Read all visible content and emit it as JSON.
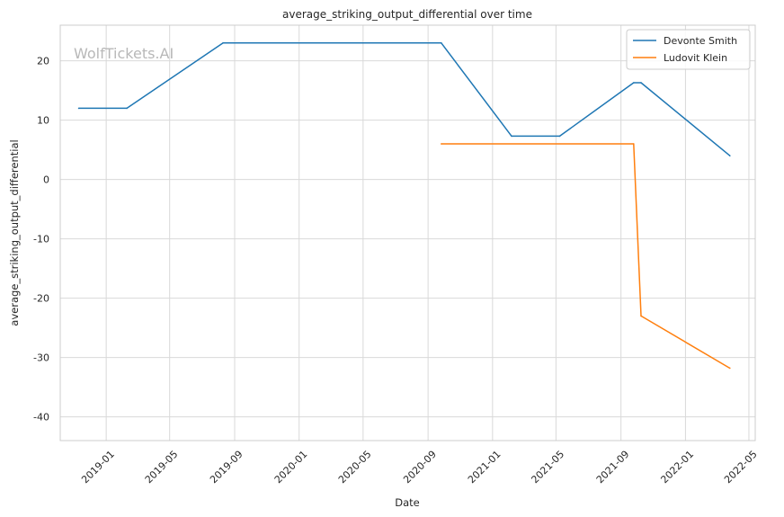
{
  "chart_data": {
    "type": "line",
    "title": "average_striking_output_differential over time",
    "xlabel": "Date",
    "ylabel": "average_striking_output_differential",
    "watermark": "WolfTickets.AI",
    "x_ticks": [
      "2019-01",
      "2019-05",
      "2019-09",
      "2020-01",
      "2020-05",
      "2020-09",
      "2021-01",
      "2021-05",
      "2021-09",
      "2022-01",
      "2022-05"
    ],
    "y_ticks": [
      -40,
      -30,
      -20,
      -10,
      0,
      10,
      20
    ],
    "xlim": [
      "2018-10-06",
      "2022-05-13"
    ],
    "ylim": [
      -44,
      26
    ],
    "grid": true,
    "legend_position": "top-right",
    "series": [
      {
        "name": "Devonte Smith",
        "color": "#1f77b4",
        "points": [
          [
            "2018-11-10",
            12.0
          ],
          [
            "2019-02-09",
            12.0
          ],
          [
            "2019-08-10",
            23.0
          ],
          [
            "2020-09-26",
            23.0
          ],
          [
            "2021-02-06",
            7.3
          ],
          [
            "2021-05-08",
            7.3
          ],
          [
            "2021-09-25",
            16.3
          ],
          [
            "2021-10-09",
            16.3
          ],
          [
            "2022-03-26",
            4.0
          ]
        ]
      },
      {
        "name": "Ludovit Klein",
        "color": "#ff7f0e",
        "points": [
          [
            "2020-09-26",
            6.0
          ],
          [
            "2021-09-25",
            6.0
          ],
          [
            "2021-10-09",
            -23.0
          ],
          [
            "2022-03-26",
            -31.8
          ]
        ]
      }
    ]
  }
}
